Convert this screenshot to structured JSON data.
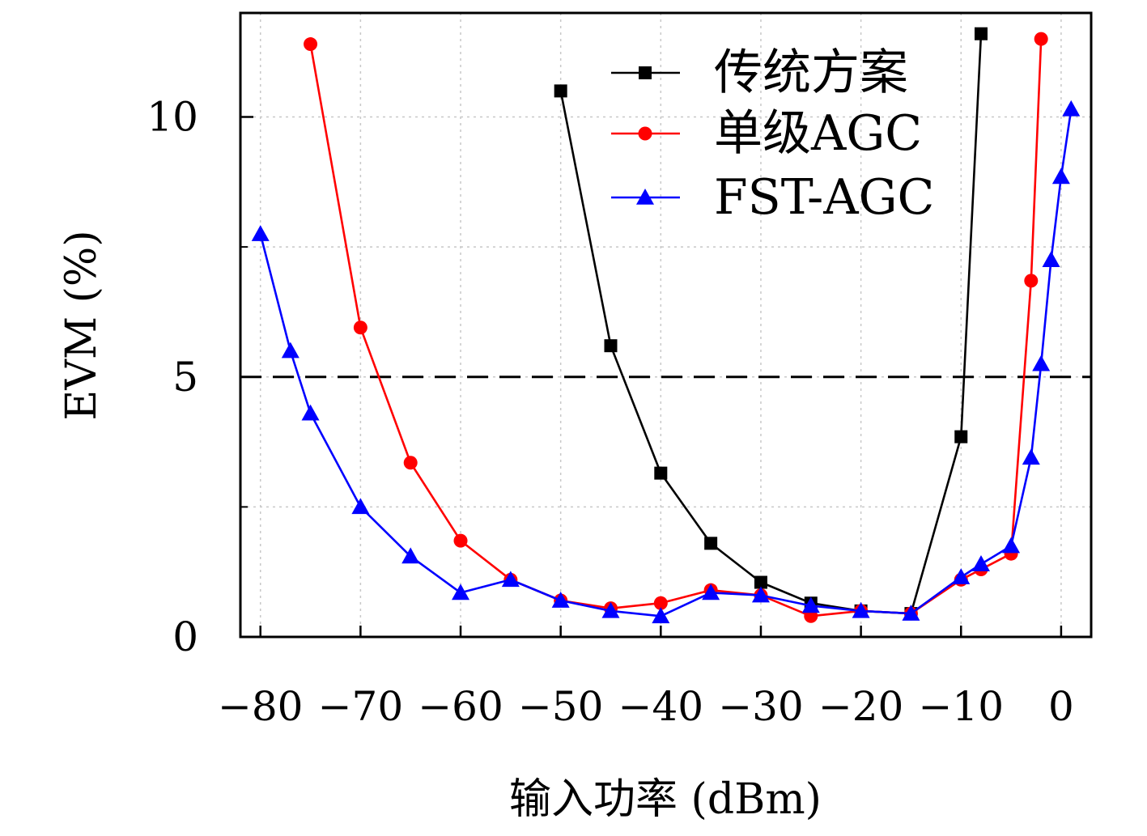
{
  "chart_data": {
    "type": "line",
    "title": "",
    "xlabel": "输入功率 (dBm)",
    "ylabel": "EVM (%)",
    "xlim": [
      -82,
      3
    ],
    "ylim": [
      0,
      12
    ],
    "xticks": [
      -80,
      -70,
      -60,
      -50,
      -40,
      -30,
      -20,
      -10,
      0
    ],
    "xtick_labels": [
      "−80",
      "−70",
      "−60",
      "−50",
      "−40",
      "−30",
      "−20",
      "−10",
      "0"
    ],
    "yticks": [
      0,
      5,
      10
    ],
    "ytick_labels": [
      "0",
      "5",
      "10"
    ],
    "minor_yticks": [
      2.5,
      7.5
    ],
    "grid": true,
    "legend_position": "top-right",
    "reference_line": {
      "y": 5,
      "style": "dashed",
      "color": "#000000"
    },
    "series": [
      {
        "name": "传统方案",
        "color": "#000000",
        "marker": "square",
        "x": [
          -50,
          -45,
          -40,
          -35,
          -30,
          -25,
          -20,
          -15,
          -10,
          -8
        ],
        "y": [
          10.5,
          5.6,
          3.15,
          1.8,
          1.05,
          0.65,
          0.5,
          0.45,
          3.85,
          11.6
        ]
      },
      {
        "name": "单级AGC",
        "color": "#ff0000",
        "marker": "circle",
        "x": [
          -75,
          -70,
          -65,
          -60,
          -55,
          -50,
          -45,
          -40,
          -35,
          -30,
          -25,
          -20,
          -15,
          -10,
          -8,
          -5,
          -3,
          -2
        ],
        "y": [
          11.4,
          5.95,
          3.35,
          1.85,
          1.1,
          0.7,
          0.55,
          0.65,
          0.9,
          0.8,
          0.4,
          0.5,
          0.45,
          1.1,
          1.3,
          1.6,
          6.85,
          11.5
        ]
      },
      {
        "name": "FST-AGC",
        "color": "#0000ff",
        "marker": "triangle",
        "x": [
          -80,
          -77,
          -75,
          -70,
          -65,
          -60,
          -55,
          -50,
          -45,
          -40,
          -35,
          -30,
          -25,
          -20,
          -15,
          -10,
          -8,
          -5,
          -3,
          -2,
          -1,
          0,
          1
        ],
        "y": [
          7.75,
          5.5,
          4.3,
          2.5,
          1.55,
          0.85,
          1.1,
          0.7,
          0.5,
          0.4,
          0.85,
          0.8,
          0.6,
          0.5,
          0.45,
          1.15,
          1.4,
          1.75,
          3.45,
          5.25,
          7.25,
          8.85,
          10.15
        ]
      }
    ]
  }
}
